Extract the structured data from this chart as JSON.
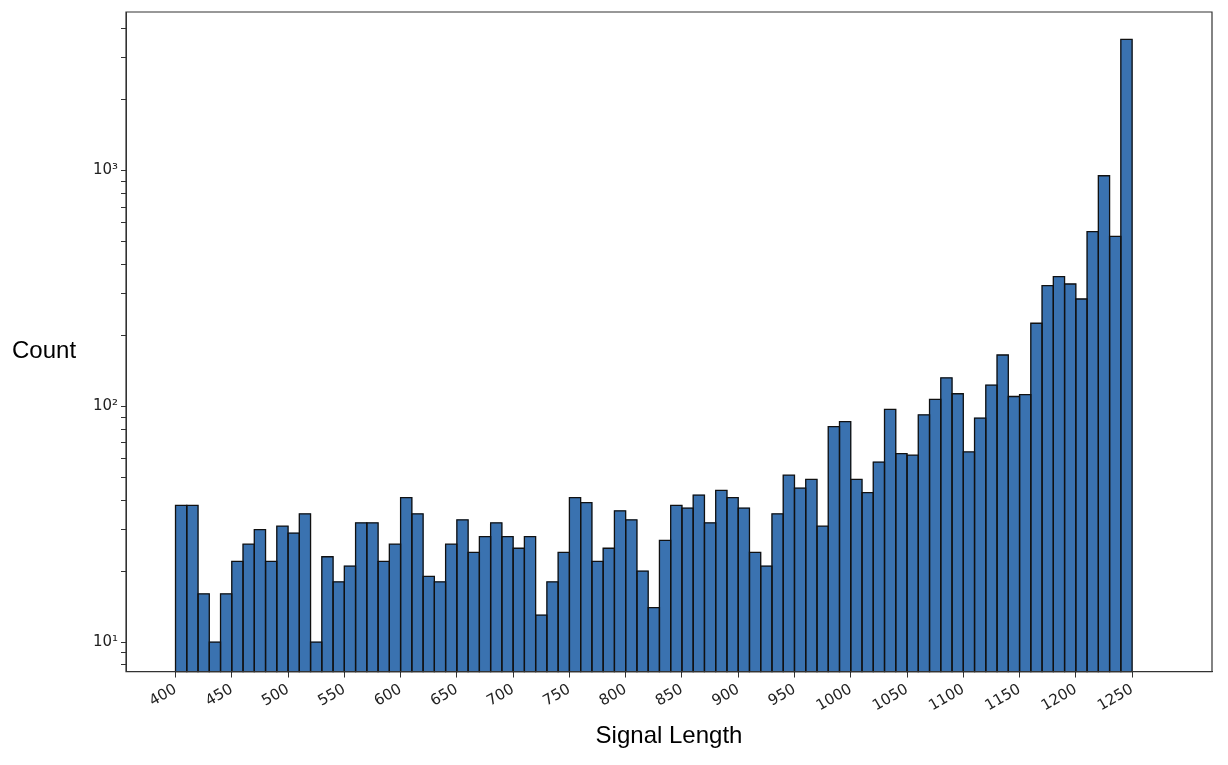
{
  "chart_data": {
    "type": "histogram",
    "xlabel": "Signal Length",
    "ylabel": "Count",
    "color": "#3a72b0",
    "bins": [
      400,
      410,
      420,
      430,
      440,
      450,
      460,
      470,
      480,
      490,
      500,
      510,
      520,
      530,
      540,
      550,
      560,
      570,
      580,
      590,
      600,
      610,
      620,
      630,
      640,
      650,
      660,
      670,
      680,
      690,
      700,
      710,
      720,
      730,
      740,
      750,
      760,
      770,
      780,
      790,
      800,
      810,
      820,
      830,
      840,
      850,
      860,
      870,
      880,
      890,
      900,
      910,
      920,
      930,
      940,
      950,
      960,
      970,
      980,
      990,
      1000,
      1010,
      1020,
      1030,
      1040,
      1050,
      1060,
      1070,
      1080,
      1090,
      1100,
      1110,
      1120,
      1130,
      1140,
      1150,
      1160,
      1170,
      1180,
      1190,
      1200,
      1210,
      1220,
      1230,
      1240,
      1250
    ],
    "values": [
      38,
      38,
      16,
      10,
      16,
      22,
      26,
      30,
      22,
      31,
      29,
      35,
      10,
      23,
      18,
      21,
      32,
      32,
      22,
      26,
      41,
      35,
      19,
      18,
      26,
      33,
      24,
      28,
      32,
      28,
      25,
      28,
      13,
      18,
      24,
      41,
      39,
      22,
      25,
      36,
      33,
      20,
      14,
      27,
      38,
      37,
      42,
      32,
      44,
      41,
      37,
      24,
      21,
      35,
      51,
      45,
      49,
      31,
      82,
      86,
      49,
      43,
      58,
      97,
      63,
      62,
      92,
      107,
      132,
      113,
      64,
      89,
      123,
      165,
      110,
      112,
      225,
      325,
      355,
      330,
      285,
      550,
      950,
      525,
      3600
    ],
    "log": "y",
    "grid": false,
    "legend": false,
    "xlim": [
      356,
      1321
    ],
    "xticks": [
      400,
      450,
      500,
      550,
      600,
      650,
      700,
      750,
      800,
      850,
      900,
      950,
      1000,
      1050,
      1100,
      1150,
      1200,
      1250
    ],
    "ylim": [
      7.5,
      4700
    ],
    "yticks": [
      {
        "value": 8,
        "label": null
      },
      {
        "value": 9,
        "label": null
      },
      {
        "value": 10,
        "label": "10¹"
      },
      {
        "value": 20,
        "label": null
      },
      {
        "value": 30,
        "label": null
      },
      {
        "value": 40,
        "label": null
      },
      {
        "value": 50,
        "label": null
      },
      {
        "value": 60,
        "label": null
      },
      {
        "value": 70,
        "label": null
      },
      {
        "value": 80,
        "label": null
      },
      {
        "value": 90,
        "label": null
      },
      {
        "value": 100,
        "label": "10²"
      },
      {
        "value": 200,
        "label": null
      },
      {
        "value": 300,
        "label": null
      },
      {
        "value": 400,
        "label": null
      },
      {
        "value": 500,
        "label": null
      },
      {
        "value": 600,
        "label": null
      },
      {
        "value": 700,
        "label": null
      },
      {
        "value": 800,
        "label": null
      },
      {
        "value": 900,
        "label": null
      },
      {
        "value": 1000,
        "label": "10³"
      },
      {
        "value": 2000,
        "label": null
      },
      {
        "value": 3000,
        "label": null
      },
      {
        "value": 4000,
        "label": null
      }
    ]
  }
}
